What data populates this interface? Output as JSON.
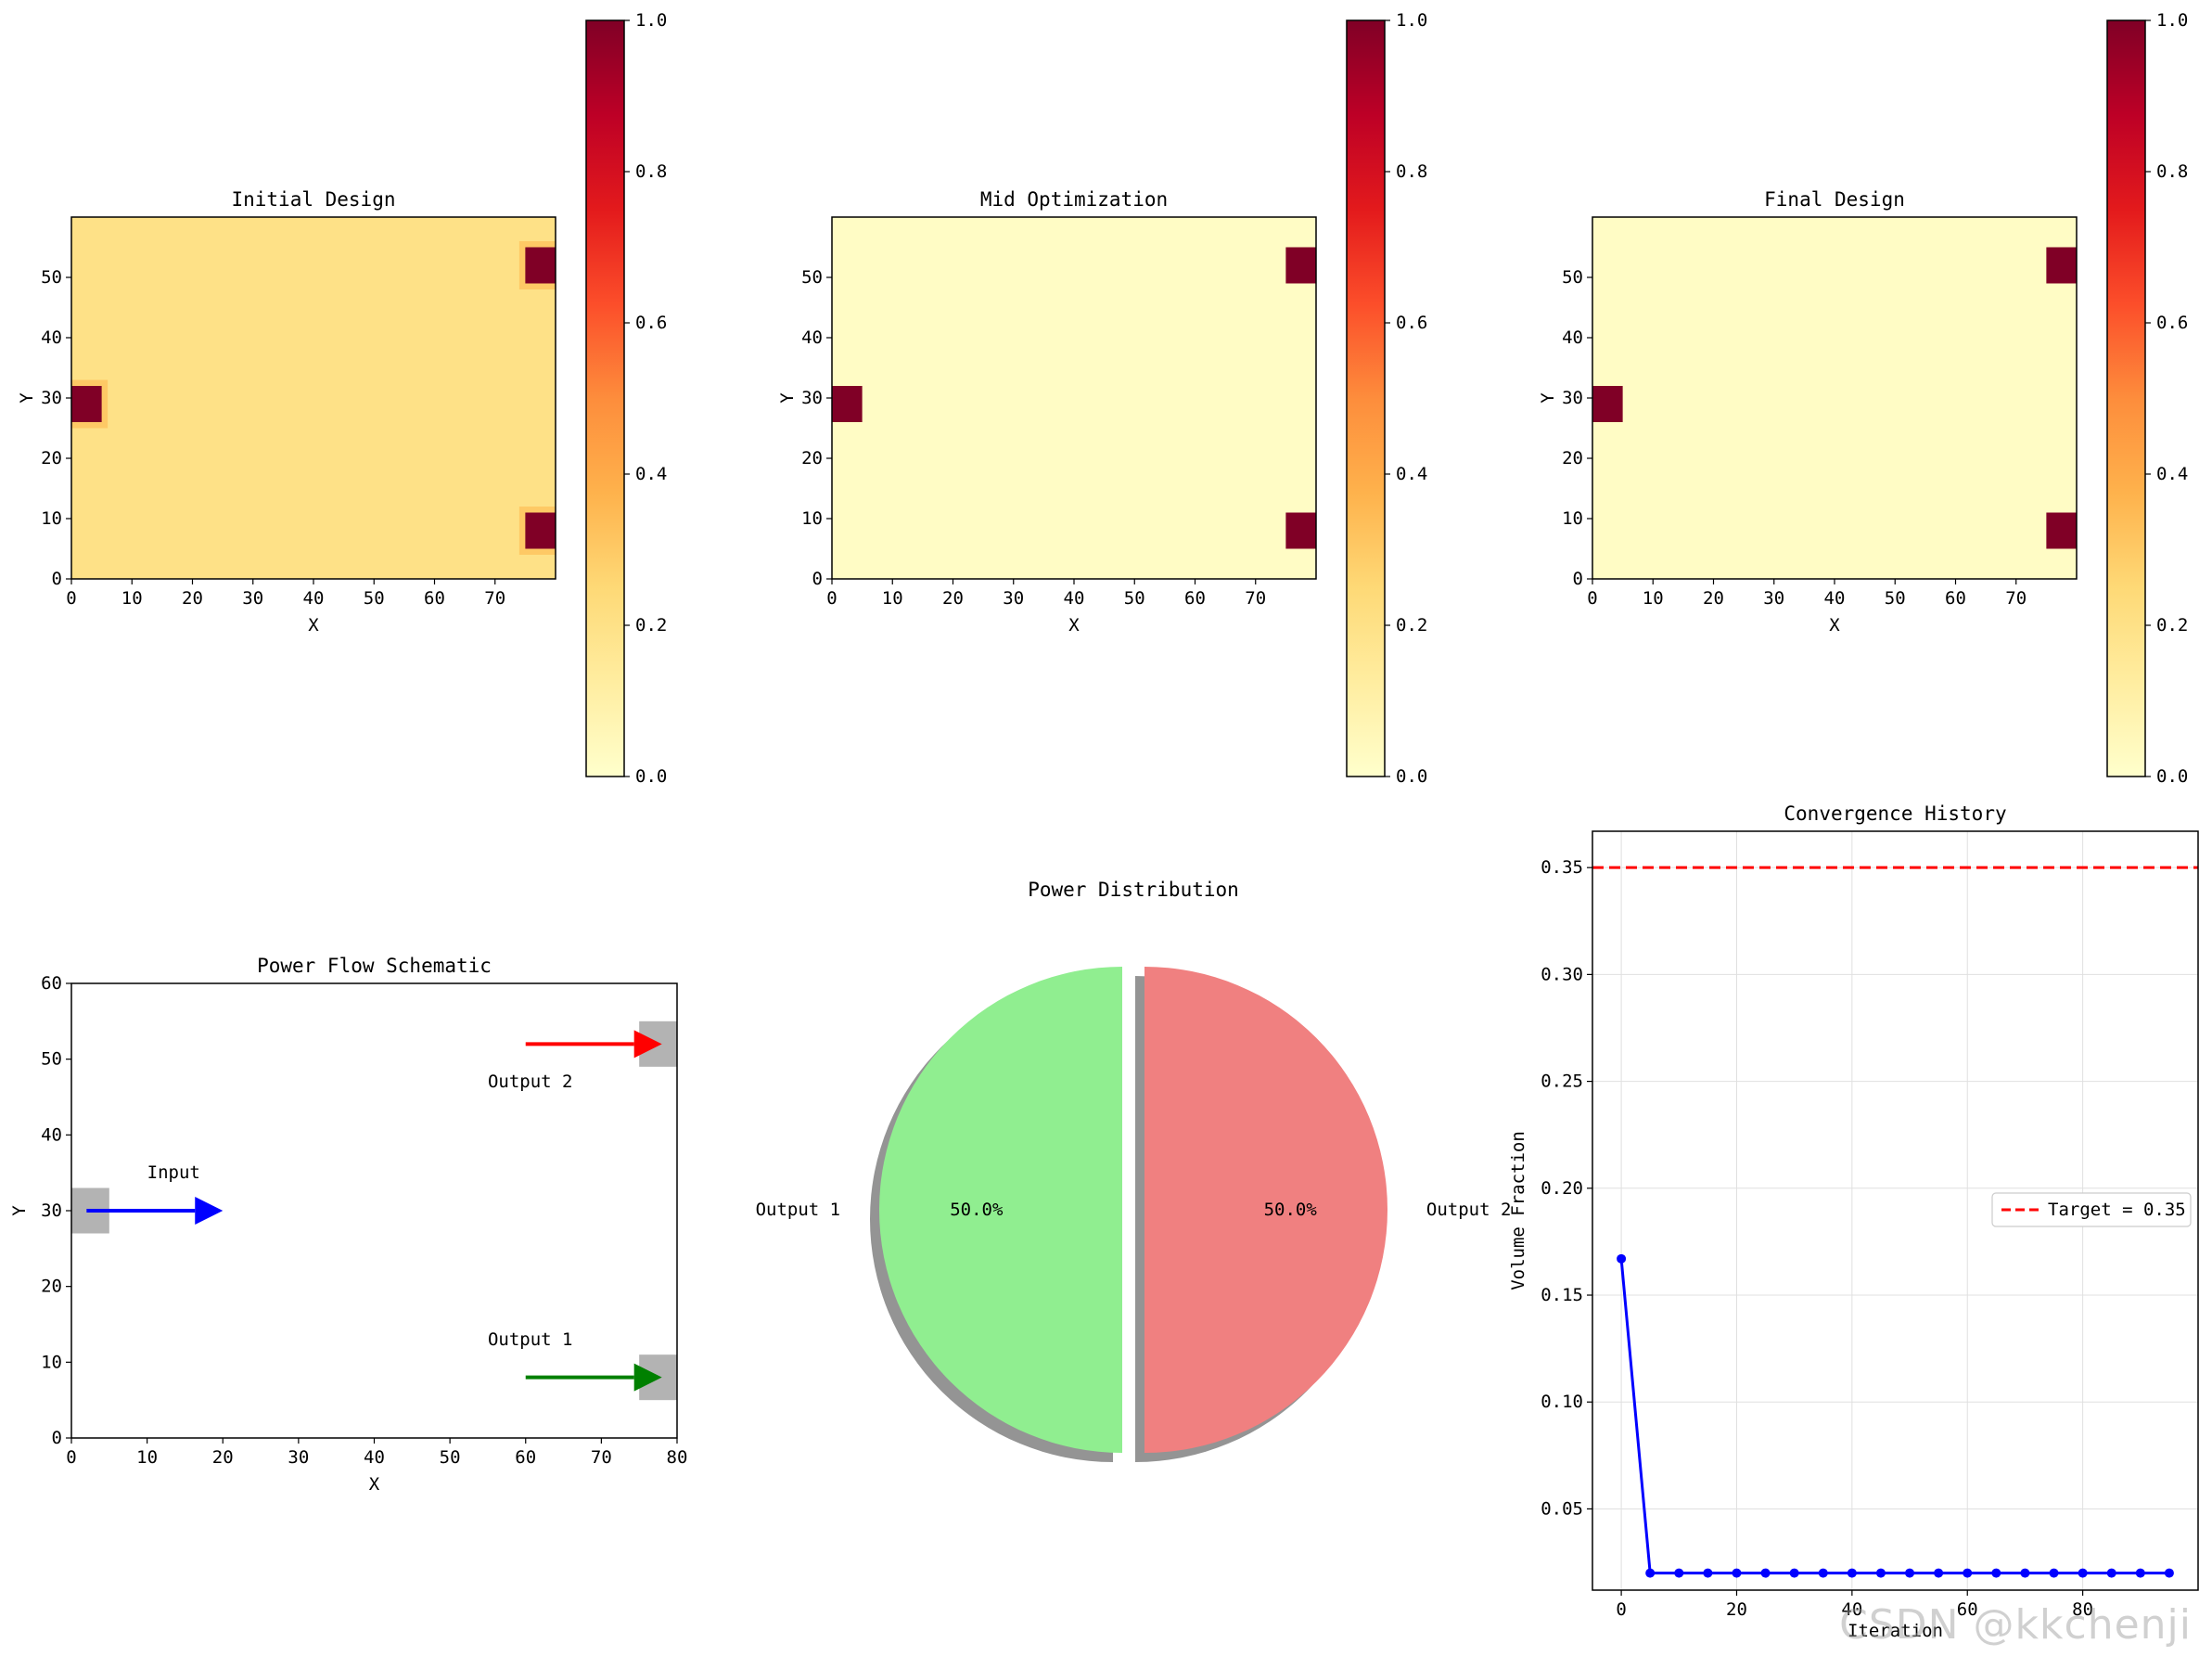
{
  "watermark": "CSDN @kkchenji",
  "colors": {
    "input": "#0000ff",
    "output1": "#008000",
    "output2": "#ff0000",
    "pie_output1": "#90ee90",
    "pie_output2": "#f08080",
    "port": "#b3b3b3",
    "conv_line": "#0000ff",
    "target_line": "#ff0000"
  },
  "chart_data": [
    {
      "type": "heatmap",
      "title": "Initial Design",
      "xlabel": "X",
      "ylabel": "Y",
      "xlim": [
        0,
        80
      ],
      "ylim": [
        0,
        60
      ],
      "xticks": [
        0,
        10,
        20,
        30,
        40,
        50,
        60,
        70
      ],
      "yticks": [
        0,
        10,
        20,
        30,
        40,
        50
      ],
      "colormap": "YlOrRd",
      "colorbar": {
        "min": 0.0,
        "max": 1.0,
        "ticks": [
          "0.0",
          "0.2",
          "0.4",
          "0.6",
          "0.8",
          "1.0"
        ]
      },
      "background_value": 0.2,
      "halo_value": 0.3,
      "blocks": [
        {
          "x": [
            0,
            5
          ],
          "y": [
            26,
            32
          ],
          "value": 1.0
        },
        {
          "x": [
            75,
            80
          ],
          "y": [
            49,
            55
          ],
          "value": 1.0
        },
        {
          "x": [
            75,
            80
          ],
          "y": [
            5,
            11
          ],
          "value": 1.0
        }
      ]
    },
    {
      "type": "heatmap",
      "title": "Mid Optimization",
      "xlabel": "X",
      "ylabel": "Y",
      "xlim": [
        0,
        80
      ],
      "ylim": [
        0,
        60
      ],
      "xticks": [
        0,
        10,
        20,
        30,
        40,
        50,
        60,
        70
      ],
      "yticks": [
        0,
        10,
        20,
        30,
        40,
        50
      ],
      "colormap": "YlOrRd",
      "colorbar": {
        "min": 0.0,
        "max": 1.0,
        "ticks": [
          "0.0",
          "0.2",
          "0.4",
          "0.6",
          "0.8",
          "1.0"
        ]
      },
      "background_value": 0.02,
      "blocks": [
        {
          "x": [
            0,
            5
          ],
          "y": [
            26,
            32
          ],
          "value": 1.0
        },
        {
          "x": [
            75,
            80
          ],
          "y": [
            49,
            55
          ],
          "value": 1.0
        },
        {
          "x": [
            75,
            80
          ],
          "y": [
            5,
            11
          ],
          "value": 1.0
        }
      ]
    },
    {
      "type": "heatmap",
      "title": "Final Design",
      "xlabel": "X",
      "ylabel": "Y",
      "xlim": [
        0,
        80
      ],
      "ylim": [
        0,
        60
      ],
      "xticks": [
        0,
        10,
        20,
        30,
        40,
        50,
        60,
        70
      ],
      "yticks": [
        0,
        10,
        20,
        30,
        40,
        50
      ],
      "colormap": "YlOrRd",
      "colorbar": {
        "min": 0.0,
        "max": 1.0,
        "ticks": [
          "0.0",
          "0.2",
          "0.4",
          "0.6",
          "0.8",
          "1.0"
        ]
      },
      "background_value": 0.02,
      "blocks": [
        {
          "x": [
            0,
            5
          ],
          "y": [
            26,
            32
          ],
          "value": 1.0
        },
        {
          "x": [
            75,
            80
          ],
          "y": [
            49,
            55
          ],
          "value": 1.0
        },
        {
          "x": [
            75,
            80
          ],
          "y": [
            5,
            11
          ],
          "value": 1.0
        }
      ]
    },
    {
      "type": "scatter",
      "title": "Power Flow Schematic",
      "xlabel": "X",
      "ylabel": "Y",
      "xlim": [
        0,
        80
      ],
      "ylim": [
        0,
        60
      ],
      "xticks": [
        0,
        10,
        20,
        30,
        40,
        50,
        60,
        70,
        80
      ],
      "yticks": [
        0,
        10,
        20,
        30,
        40,
        50,
        60
      ],
      "ports": [
        {
          "x": [
            0,
            5
          ],
          "y": [
            27,
            33
          ]
        },
        {
          "x": [
            75,
            80
          ],
          "y": [
            49,
            55
          ]
        },
        {
          "x": [
            75,
            80
          ],
          "y": [
            5,
            11
          ]
        }
      ],
      "arrows": [
        {
          "from": [
            2,
            30
          ],
          "to": [
            20,
            30
          ],
          "color_key": "input",
          "label": "Input",
          "label_at": [
            10,
            35
          ]
        },
        {
          "from": [
            60,
            52
          ],
          "to": [
            78,
            52
          ],
          "color_key": "output2",
          "label": "Output 2",
          "label_at": [
            55,
            47
          ]
        },
        {
          "from": [
            60,
            8
          ],
          "to": [
            78,
            8
          ],
          "color_key": "output1",
          "label": "Output 1",
          "label_at": [
            55,
            13
          ]
        }
      ]
    },
    {
      "type": "pie",
      "title": "Power Distribution",
      "labels": [
        "Output 1",
        "Output 2"
      ],
      "values": [
        50.0,
        50.0
      ],
      "pct_labels": [
        "50.0%",
        "50.0%"
      ],
      "shadow": true,
      "explode": true
    },
    {
      "type": "line",
      "title": "Convergence History",
      "xlabel": "Iteration",
      "ylabel": "Volume Fraction",
      "xlim": [
        -5,
        100
      ],
      "ylim": [
        0.012,
        0.367
      ],
      "xticks": [
        0,
        20,
        40,
        60,
        80
      ],
      "yticks": [
        "0.05",
        "0.10",
        "0.15",
        "0.20",
        "0.25",
        "0.30",
        "0.35"
      ],
      "grid": true,
      "legend": {
        "placement": "center-right",
        "label": "Target = 0.35"
      },
      "target": 0.35,
      "x": [
        0,
        5,
        10,
        15,
        20,
        25,
        30,
        35,
        40,
        45,
        50,
        55,
        60,
        65,
        70,
        75,
        80,
        85,
        90,
        95
      ],
      "y": [
        0.167,
        0.02,
        0.02,
        0.02,
        0.02,
        0.02,
        0.02,
        0.02,
        0.02,
        0.02,
        0.02,
        0.02,
        0.02,
        0.02,
        0.02,
        0.02,
        0.02,
        0.02,
        0.02,
        0.02
      ]
    }
  ]
}
